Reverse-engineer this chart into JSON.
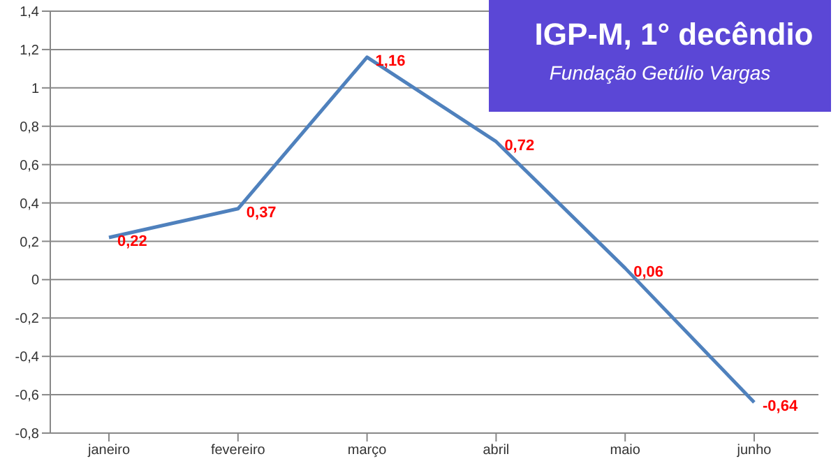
{
  "chart_data": {
    "type": "line",
    "title": "IGP-M, 1° decêndio",
    "subtitle": "Fundação Getúlio Vargas",
    "categories": [
      "janeiro",
      "fevereiro",
      "março",
      "abril",
      "maio",
      "junho"
    ],
    "series": [
      {
        "color": "#4f81bd",
        "values": [
          0.22,
          0.37,
          1.16,
          0.72,
          0.06,
          -0.64
        ],
        "value_labels": [
          "0,22",
          "0,37",
          "1,16",
          "0,72",
          "0,06",
          "-0,64"
        ]
      }
    ],
    "ylim": [
      -0.8,
      1.4
    ],
    "yticks": [
      {
        "value": -0.8,
        "label": "-0,8"
      },
      {
        "value": -0.6,
        "label": "-0,6"
      },
      {
        "value": -0.4,
        "label": "-0,4"
      },
      {
        "value": -0.2,
        "label": "-0,2"
      },
      {
        "value": 0,
        "label": "0"
      },
      {
        "value": 0.2,
        "label": "0,2"
      },
      {
        "value": 0.4,
        "label": "0,4"
      },
      {
        "value": 0.6,
        "label": "0,6"
      },
      {
        "value": 0.8,
        "label": "0,8"
      },
      {
        "value": 1,
        "label": "1"
      },
      {
        "value": 1.2,
        "label": "1,2"
      },
      {
        "value": 1.4,
        "label": "1,4"
      }
    ],
    "grid": "y",
    "legend": false,
    "marker": "none",
    "line_style": "solid"
  }
}
